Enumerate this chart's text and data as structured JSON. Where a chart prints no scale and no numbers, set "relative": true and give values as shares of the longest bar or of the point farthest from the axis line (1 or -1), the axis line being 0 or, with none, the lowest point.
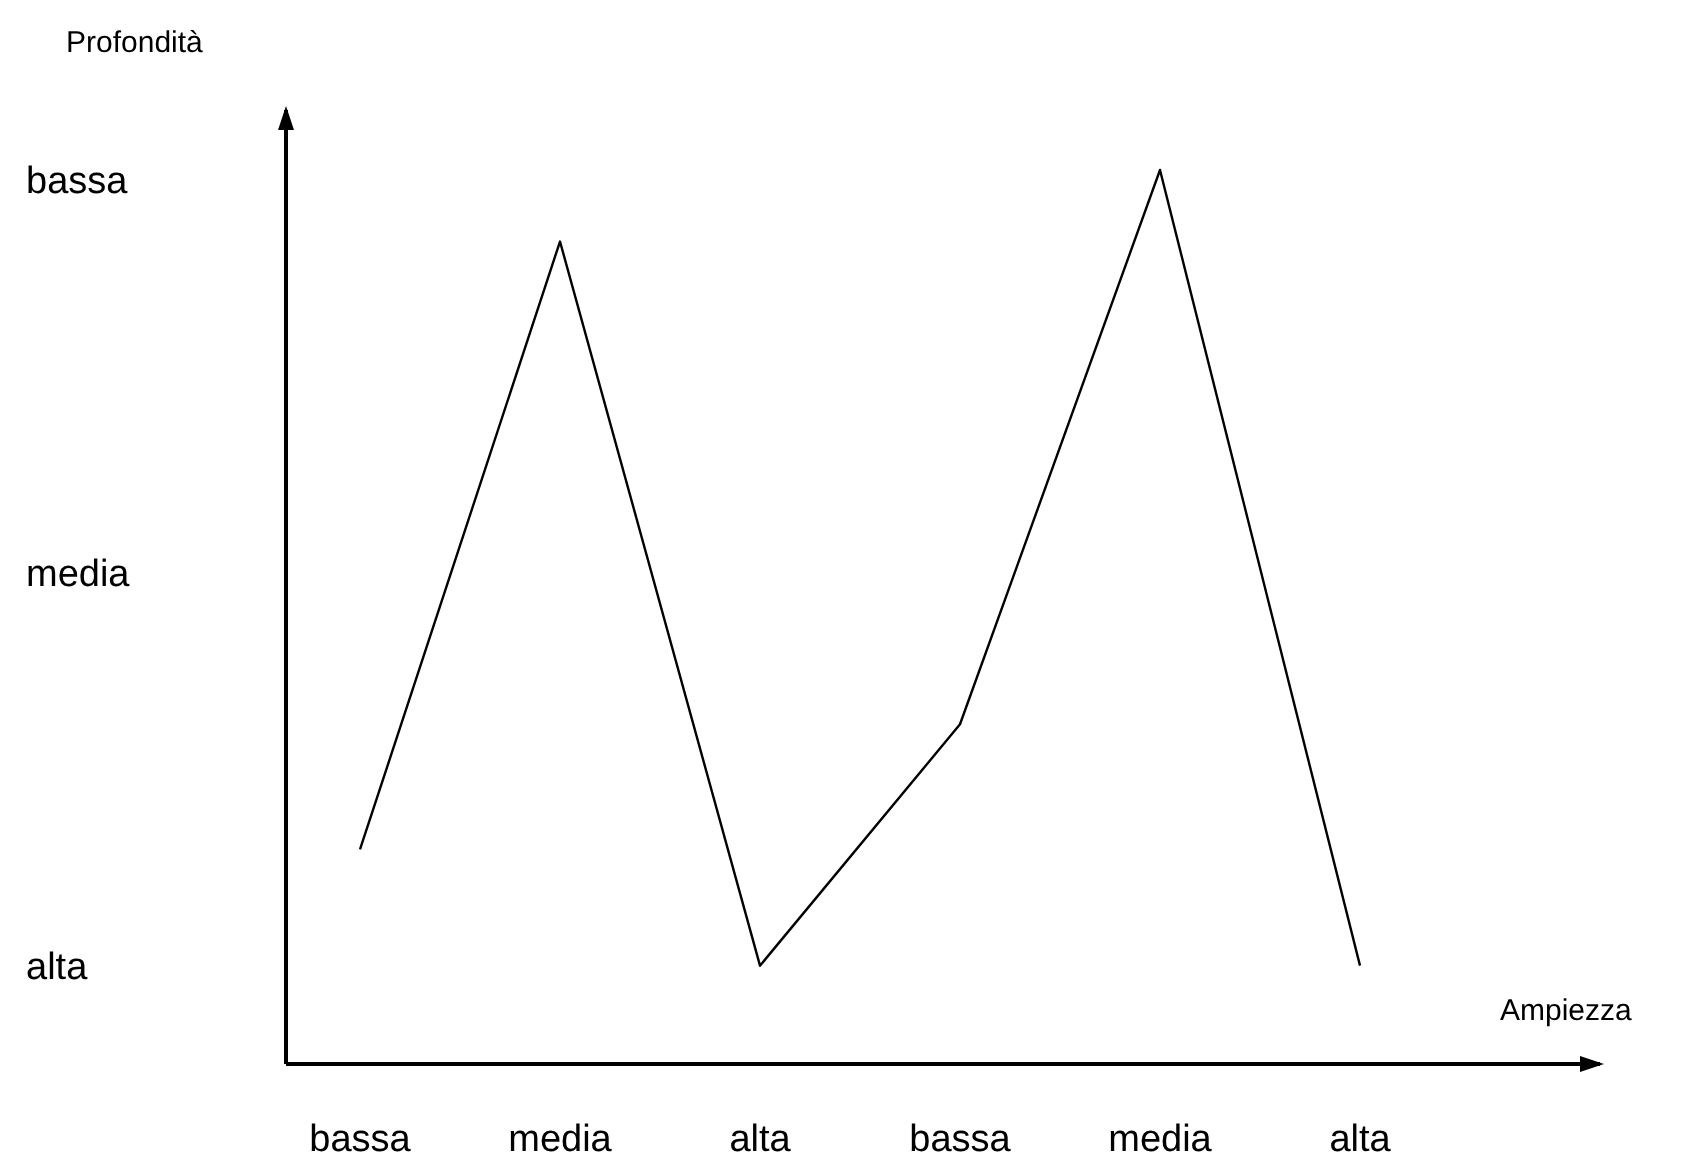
{
  "chart_data": {
    "type": "line",
    "xlabel": "Ampiezza",
    "ylabel": "Profondità",
    "relative": true,
    "categories": [
      "bassa",
      "media",
      "alta",
      "bassa",
      "media",
      "alta"
    ],
    "series": [
      {
        "color": "#000000",
        "values": [
          0.24,
          0.92,
          0.11,
          0.38,
          1.0,
          0.11
        ]
      }
    ],
    "annotations": [
      "bassa",
      "media",
      "alta"
    ],
    "grid": false,
    "marker": "none",
    "line_style": "solid"
  }
}
